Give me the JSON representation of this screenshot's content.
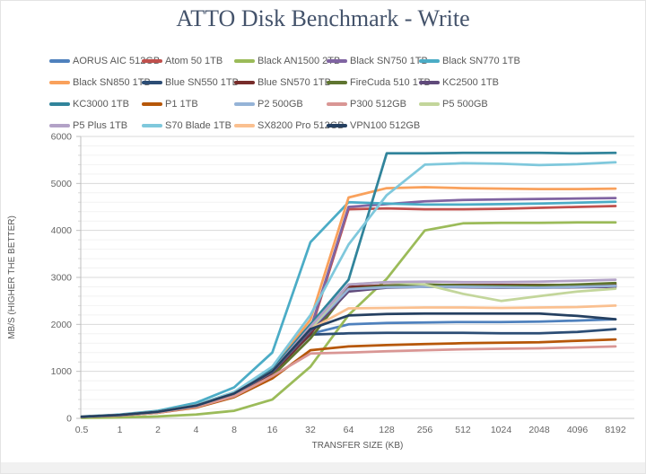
{
  "chart_data": {
    "type": "line",
    "title": "ATTO Disk Benchmark - Write",
    "xlabel": "TRANSFER SIZE (KB)",
    "ylabel": "MB/S (HIGHER THE BETTER)",
    "categories": [
      "0.5",
      "1",
      "2",
      "4",
      "8",
      "16",
      "32",
      "64",
      "128",
      "256",
      "512",
      "1024",
      "2048",
      "4096",
      "8192"
    ],
    "ylim": [
      0,
      6000
    ],
    "y_major_ticks": [
      0,
      1000,
      2000,
      3000,
      4000,
      5000,
      6000
    ],
    "y_minor_step": 200,
    "grid": true,
    "legend_position": "top",
    "series": [
      {
        "name": "AORUS AIC 512GB",
        "color": "#4F81BD",
        "values": [
          35,
          70,
          140,
          260,
          500,
          950,
          1800,
          2000,
          2030,
          2040,
          2050,
          2050,
          2060,
          2080,
          2110
        ]
      },
      {
        "name": "Atom 50 1TB",
        "color": "#C0504D",
        "values": [
          35,
          70,
          140,
          270,
          520,
          980,
          1850,
          4450,
          4470,
          4450,
          4450,
          4460,
          4480,
          4500,
          4520
        ]
      },
      {
        "name": "Black AN1500 2TB",
        "color": "#9BBB59",
        "values": [
          10,
          20,
          40,
          80,
          160,
          400,
          1100,
          2200,
          2970,
          4000,
          4150,
          4160,
          4160,
          4170,
          4170
        ]
      },
      {
        "name": "Black SN750 1TB",
        "color": "#8064A2",
        "values": [
          35,
          70,
          140,
          270,
          530,
          1000,
          1900,
          4500,
          4560,
          4620,
          4650,
          4660,
          4670,
          4680,
          4690
        ]
      },
      {
        "name": "Black SN770 1TB",
        "color": "#4BACC6",
        "values": [
          40,
          80,
          160,
          330,
          660,
          1400,
          3750,
          4600,
          4570,
          4550,
          4550,
          4560,
          4570,
          4590,
          4610
        ]
      },
      {
        "name": "Black SN850 1TB",
        "color": "#F9A15C",
        "values": [
          35,
          70,
          140,
          280,
          560,
          1050,
          2100,
          4700,
          4900,
          4920,
          4900,
          4890,
          4880,
          4880,
          4890
        ]
      },
      {
        "name": "Blue SN550 1TB",
        "color": "#2C4D75",
        "values": [
          35,
          70,
          140,
          270,
          530,
          1000,
          1780,
          1810,
          1820,
          1820,
          1820,
          1810,
          1810,
          1840,
          1900
        ]
      },
      {
        "name": "Blue SN570 1TB",
        "color": "#772C2A",
        "values": [
          35,
          70,
          140,
          270,
          520,
          950,
          1800,
          2800,
          2830,
          2840,
          2840,
          2840,
          2840,
          2840,
          2840
        ]
      },
      {
        "name": "FireCuda 510 1TB",
        "color": "#5F7530",
        "values": [
          30,
          60,
          120,
          240,
          470,
          900,
          1700,
          2750,
          2820,
          2850,
          2830,
          2820,
          2830,
          2850,
          2880
        ]
      },
      {
        "name": "KC2500 1TB",
        "color": "#604A7B",
        "values": [
          35,
          70,
          140,
          270,
          520,
          980,
          1850,
          2700,
          2780,
          2800,
          2790,
          2780,
          2780,
          2790,
          2800
        ]
      },
      {
        "name": "KC3000 1TB",
        "color": "#31849B",
        "values": [
          35,
          70,
          140,
          280,
          550,
          1050,
          2000,
          2950,
          5640,
          5640,
          5650,
          5650,
          5650,
          5640,
          5650
        ]
      },
      {
        "name": "P1 1TB",
        "color": "#B65708",
        "values": [
          30,
          60,
          120,
          230,
          450,
          850,
          1450,
          1530,
          1560,
          1580,
          1600,
          1610,
          1620,
          1650,
          1680
        ]
      },
      {
        "name": "P2 500GB",
        "color": "#95B3D7",
        "values": [
          35,
          70,
          140,
          270,
          530,
          1000,
          1900,
          2750,
          2790,
          2800,
          2800,
          2790,
          2780,
          2800,
          2820
        ]
      },
      {
        "name": "P300 512GB",
        "color": "#D99694",
        "values": [
          30,
          60,
          120,
          240,
          470,
          900,
          1380,
          1400,
          1430,
          1450,
          1470,
          1480,
          1490,
          1510,
          1530
        ]
      },
      {
        "name": "P5 500GB",
        "color": "#C3D69B",
        "values": [
          35,
          70,
          140,
          270,
          530,
          1000,
          1900,
          2850,
          2900,
          2850,
          2650,
          2500,
          2600,
          2700,
          2760
        ]
      },
      {
        "name": "P5 Plus 1TB",
        "color": "#B3A2C7",
        "values": [
          35,
          70,
          140,
          270,
          530,
          1000,
          1950,
          2850,
          2900,
          2910,
          2900,
          2900,
          2910,
          2930,
          2950
        ]
      },
      {
        "name": "S70 Blade 1TB",
        "color": "#7FC8DC",
        "values": [
          35,
          70,
          140,
          280,
          560,
          1100,
          2200,
          3700,
          4750,
          5400,
          5430,
          5420,
          5390,
          5410,
          5450
        ]
      },
      {
        "name": "SX8200 Pro 512GB",
        "color": "#FAC090",
        "values": [
          35,
          70,
          140,
          270,
          530,
          1000,
          1900,
          2340,
          2350,
          2360,
          2360,
          2350,
          2360,
          2370,
          2400
        ]
      },
      {
        "name": "VPN100 512GB",
        "color": "#254061",
        "values": [
          35,
          70,
          140,
          270,
          530,
          1000,
          1900,
          2190,
          2220,
          2230,
          2230,
          2230,
          2230,
          2180,
          2110
        ]
      }
    ]
  },
  "style": {
    "title_color": "#44536B",
    "axis_text_color": "#595959",
    "tick_label_color": "#666666",
    "major_grid_color": "#D9D9D9",
    "minor_grid_color": "#F2F2F2",
    "axis_line_color": "#BFBFBF"
  }
}
